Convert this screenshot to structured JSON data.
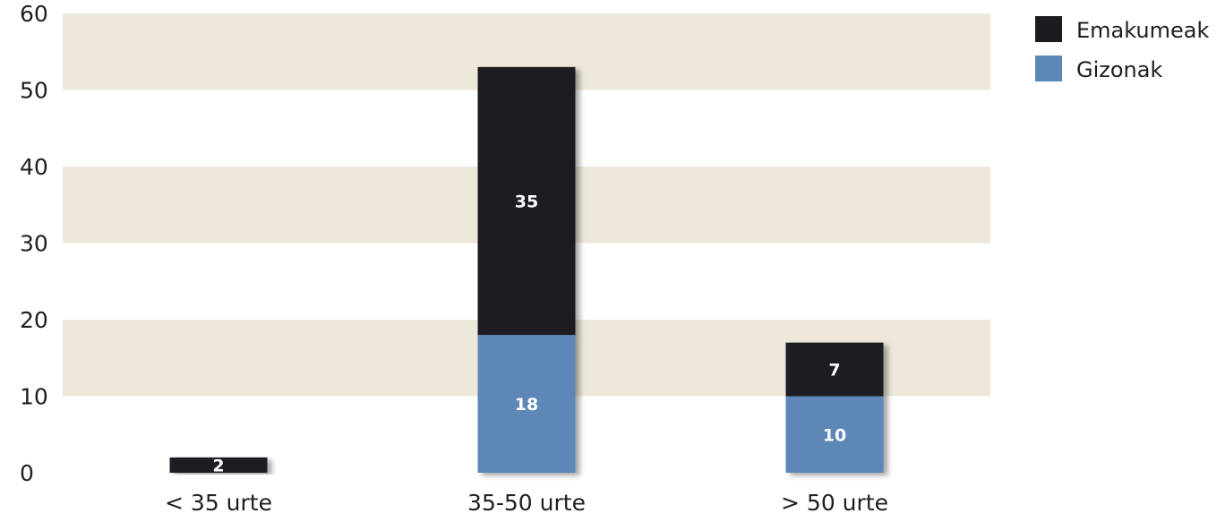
{
  "chart_data": {
    "type": "bar",
    "stacked": true,
    "categories": [
      "< 35 urte",
      "35-50 urte",
      "> 50 urte"
    ],
    "series": [
      {
        "name": "Gizonak",
        "values": [
          0,
          18,
          10
        ],
        "labels": [
          "",
          "18",
          "10"
        ],
        "color": "#5b87b7"
      },
      {
        "name": "Emakumeak",
        "values": [
          2,
          35,
          7
        ],
        "labels": [
          "2",
          "35",
          "7"
        ],
        "color": "#1c1b20"
      }
    ],
    "title": "",
    "xlabel": "",
    "ylabel": "",
    "ylim": [
      0,
      60
    ],
    "yticks": [
      "0",
      "10",
      "20",
      "30",
      "40",
      "50",
      "60"
    ],
    "band_color": "#ede8da",
    "legend": {
      "position": "top-right",
      "items": [
        {
          "name": "Emakumeak",
          "color": "#1c1b20"
        },
        {
          "name": "Gizonak",
          "color": "#5b87b7"
        }
      ]
    }
  }
}
